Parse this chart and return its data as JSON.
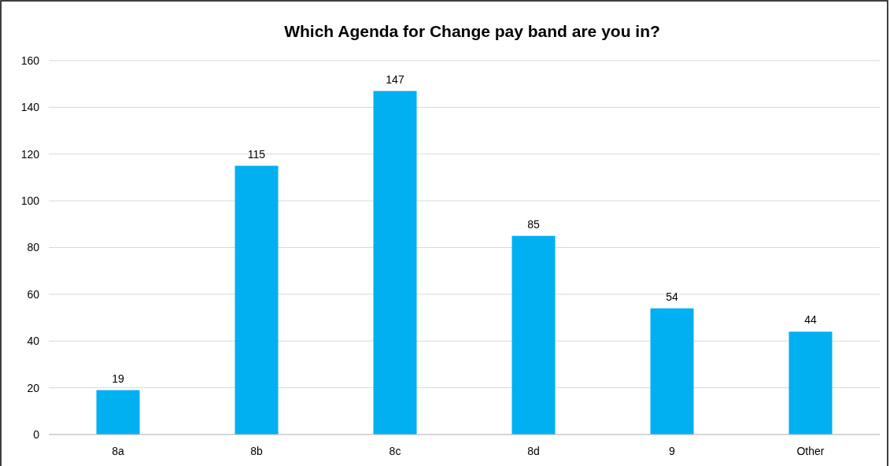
{
  "chart_data": {
    "type": "bar",
    "title": "Which Agenda for Change pay band are you in?",
    "categories": [
      "8a",
      "8b",
      "8c",
      "8d",
      "9",
      "Other"
    ],
    "values": [
      19,
      115,
      147,
      85,
      54,
      44
    ],
    "color": "#00b0f0",
    "ylim": [
      0,
      160
    ],
    "yticks": [
      0,
      20,
      40,
      60,
      80,
      100,
      120,
      140,
      160
    ],
    "grid": "y",
    "data_labels": true
  }
}
